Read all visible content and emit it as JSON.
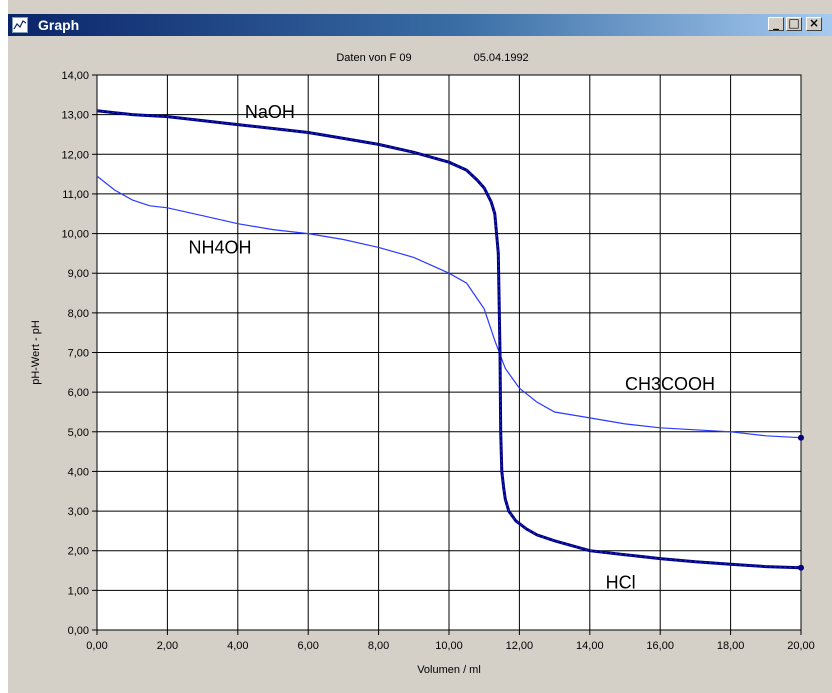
{
  "window": {
    "title": "Graph",
    "icon": "graph-icon",
    "controls": {
      "minimize": "_",
      "maximize": "□",
      "close": "×"
    }
  },
  "chart_data": {
    "type": "line",
    "title": "Daten von F 09",
    "subtitle": "05.04.1992",
    "xlabel": "Volumen / ml",
    "ylabel": "pH-Wert - pH",
    "xlim": [
      0,
      20
    ],
    "ylim": [
      0,
      14
    ],
    "xticks": [
      "0,00",
      "2,00",
      "4,00",
      "6,00",
      "8,00",
      "10,00",
      "12,00",
      "14,00",
      "16,00",
      "18,00",
      "20,00"
    ],
    "yticks": [
      "0,00",
      "1,00",
      "2,00",
      "3,00",
      "4,00",
      "5,00",
      "6,00",
      "7,00",
      "8,00",
      "9,00",
      "10,00",
      "11,00",
      "12,00",
      "13,00",
      "14,00"
    ],
    "grid": true,
    "colors": {
      "strong": "#000080",
      "weak": "#2b3bff",
      "grid": "#000000",
      "background": "#ffffff"
    },
    "series": [
      {
        "name": "NaOH / HCl",
        "style": "thick-marked",
        "x": [
          0,
          0.5,
          1,
          2,
          3,
          4,
          5,
          6,
          7,
          8,
          9,
          10,
          10.5,
          10.8,
          11.0,
          11.2,
          11.3,
          11.4,
          11.45,
          11.47,
          11.5,
          11.55,
          11.6,
          11.7,
          11.9,
          12.2,
          12.5,
          13,
          14,
          15,
          16,
          17,
          18,
          19,
          20
        ],
        "values": [
          13.1,
          13.05,
          13.0,
          12.95,
          12.85,
          12.75,
          12.65,
          12.55,
          12.4,
          12.25,
          12.05,
          11.8,
          11.6,
          11.35,
          11.15,
          10.8,
          10.5,
          9.5,
          7.0,
          5.0,
          4.0,
          3.6,
          3.3,
          3.0,
          2.75,
          2.55,
          2.4,
          2.25,
          2.0,
          1.9,
          1.8,
          1.72,
          1.66,
          1.6,
          1.57
        ]
      },
      {
        "name": "NH4OH / CH3COOH",
        "style": "thin",
        "x": [
          0,
          0.5,
          1,
          1.5,
          2,
          3,
          4,
          5,
          6,
          7,
          8,
          9,
          9.5,
          10,
          10.5,
          11,
          11.3,
          11.6,
          12,
          12.5,
          13,
          14,
          15,
          16,
          17,
          18,
          19,
          20
        ],
        "values": [
          11.45,
          11.1,
          10.85,
          10.7,
          10.65,
          10.45,
          10.25,
          10.1,
          10.0,
          9.85,
          9.65,
          9.4,
          9.2,
          9.0,
          8.75,
          8.1,
          7.3,
          6.6,
          6.1,
          5.75,
          5.5,
          5.35,
          5.2,
          5.1,
          5.05,
          5.0,
          4.9,
          4.85
        ]
      }
    ],
    "annotations": [
      "NaOH",
      "NH4OH",
      "CH3COOH",
      "HCl"
    ]
  }
}
